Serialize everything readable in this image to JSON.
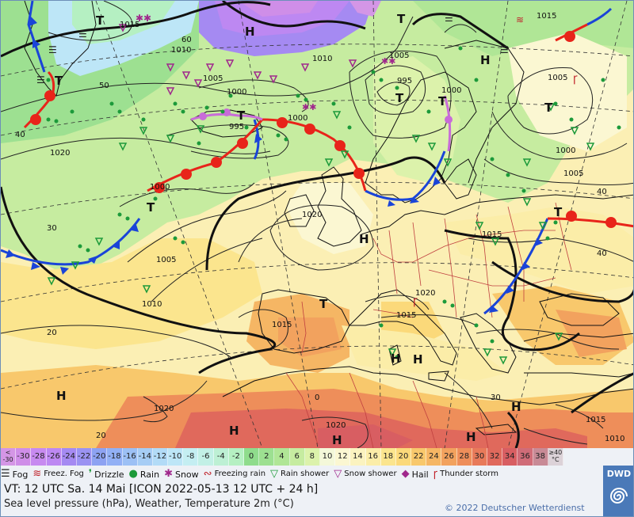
{
  "map": {
    "isobar_labels": [
      {
        "text": "1015"
      },
      {
        "text": "1010"
      },
      {
        "text": "1005"
      },
      {
        "text": "1000"
      },
      {
        "text": "995"
      },
      {
        "text": "1000"
      },
      {
        "text": "995"
      },
      {
        "text": "1000"
      },
      {
        "text": "1005"
      },
      {
        "text": "1010"
      },
      {
        "text": "1020"
      },
      {
        "text": "1000"
      },
      {
        "text": "1005"
      },
      {
        "text": "1010"
      },
      {
        "text": "1015"
      },
      {
        "text": "1020"
      },
      {
        "text": "1015"
      },
      {
        "text": "1020"
      },
      {
        "text": "1020"
      },
      {
        "text": "1015"
      },
      {
        "text": "1020"
      },
      {
        "text": "1010"
      },
      {
        "text": "1015"
      },
      {
        "text": "1005"
      },
      {
        "text": "1000"
      },
      {
        "text": "1015"
      },
      {
        "text": "1005"
      }
    ],
    "lat_labels": [
      "60",
      "50",
      "40",
      "30",
      "20",
      "40",
      "40",
      "30",
      "20",
      "0"
    ],
    "pressure_centres": [
      "H",
      "H",
      "H",
      "H",
      "H",
      "H",
      "H",
      "H",
      "H",
      "H",
      "T",
      "T",
      "T",
      "T",
      "T",
      "T",
      "T",
      "T",
      "T",
      "T"
    ]
  },
  "legend": {
    "scale": [
      {
        "label": "< -30",
        "color": "#d496e6"
      },
      {
        "label": "-30",
        "color": "#cf8ee8"
      },
      {
        "label": "-28",
        "color": "#c78af0"
      },
      {
        "label": "-26",
        "color": "#bd88f2"
      },
      {
        "label": "-24",
        "color": "#a58af2"
      },
      {
        "label": "-22",
        "color": "#9b93f2"
      },
      {
        "label": "-20",
        "color": "#8da2f2"
      },
      {
        "label": "-18",
        "color": "#92b0f5"
      },
      {
        "label": "-16",
        "color": "#9cc0f5"
      },
      {
        "label": "-14",
        "color": "#a6cdf5"
      },
      {
        "label": "-12",
        "color": "#b2dbf7"
      },
      {
        "label": "-10",
        "color": "#bde6f7"
      },
      {
        "label": "-8",
        "color": "#c4eef2"
      },
      {
        "label": "-6",
        "color": "#c2f0e6"
      },
      {
        "label": "-4",
        "color": "#bdf0d4"
      },
      {
        "label": "-2",
        "color": "#b5f0c2"
      },
      {
        "label": "0",
        "color": "#8fdc8c"
      },
      {
        "label": "2",
        "color": "#9de091"
      },
      {
        "label": "4",
        "color": "#b0e696"
      },
      {
        "label": "6",
        "color": "#c6eca0"
      },
      {
        "label": "8",
        "color": "#dcf2ab"
      },
      {
        "label": "10",
        "color": "#f4f8d9"
      },
      {
        "label": "12",
        "color": "#fbf7d2"
      },
      {
        "label": "14",
        "color": "#fbf3c0"
      },
      {
        "label": "16",
        "color": "#fbeda8"
      },
      {
        "label": "18",
        "color": "#fbe58e"
      },
      {
        "label": "20",
        "color": "#fbd97a"
      },
      {
        "label": "22",
        "color": "#f8c86c"
      },
      {
        "label": "24",
        "color": "#f5b664"
      },
      {
        "label": "26",
        "color": "#f2a25e"
      },
      {
        "label": "28",
        "color": "#ee8e5a"
      },
      {
        "label": "30",
        "color": "#e87a5a"
      },
      {
        "label": "32",
        "color": "#e0695c"
      },
      {
        "label": "34",
        "color": "#d85e62"
      },
      {
        "label": "36",
        "color": "#d06c78"
      },
      {
        "label": "38",
        "color": "#c88a96"
      },
      {
        "label": "≥40 °C",
        "color": "#dcd2d8"
      }
    ],
    "symbols": [
      {
        "icon": "fog-icon",
        "glyph": "☰",
        "color": "#222",
        "label": "Fog"
      },
      {
        "icon": "freezing-fog-icon",
        "glyph": "≋",
        "color": "#c0222a",
        "label": "Freez. Fog"
      },
      {
        "icon": "drizzle-icon",
        "glyph": "❜",
        "color": "#1c9a3a",
        "label": "Drizzle"
      },
      {
        "icon": "rain-icon",
        "glyph": "●",
        "color": "#1c9a3a",
        "label": "Rain"
      },
      {
        "icon": "snow-icon",
        "glyph": "✱",
        "color": "#a0288c",
        "label": "Snow"
      },
      {
        "icon": "freezing-rain-icon",
        "glyph": "∾",
        "color": "#c0222a",
        "label": "Freezing rain"
      },
      {
        "icon": "rain-shower-icon",
        "glyph": "▽",
        "color": "#1c9a3a",
        "label": "Rain shower"
      },
      {
        "icon": "snow-shower-icon",
        "glyph": "▽",
        "color": "#a0288c",
        "label": "Snow shower"
      },
      {
        "icon": "hail-icon",
        "glyph": "◆",
        "color": "#a0288c",
        "label": "Hail"
      },
      {
        "icon": "thunderstorm-icon",
        "glyph": "ꞅ",
        "color": "#c0222a",
        "label": "Thunder storm"
      }
    ],
    "valid_time": "VT: 12 UTC Sa.  14 Mai [ICON 2022-05-13  12 UTC + 24 h]",
    "description": "Sea level pressure (hPa), Weather, Temperature 2m (°C)",
    "copyright": "© 2022 Deutscher Wetterdienst",
    "logo_text": "DWD"
  }
}
